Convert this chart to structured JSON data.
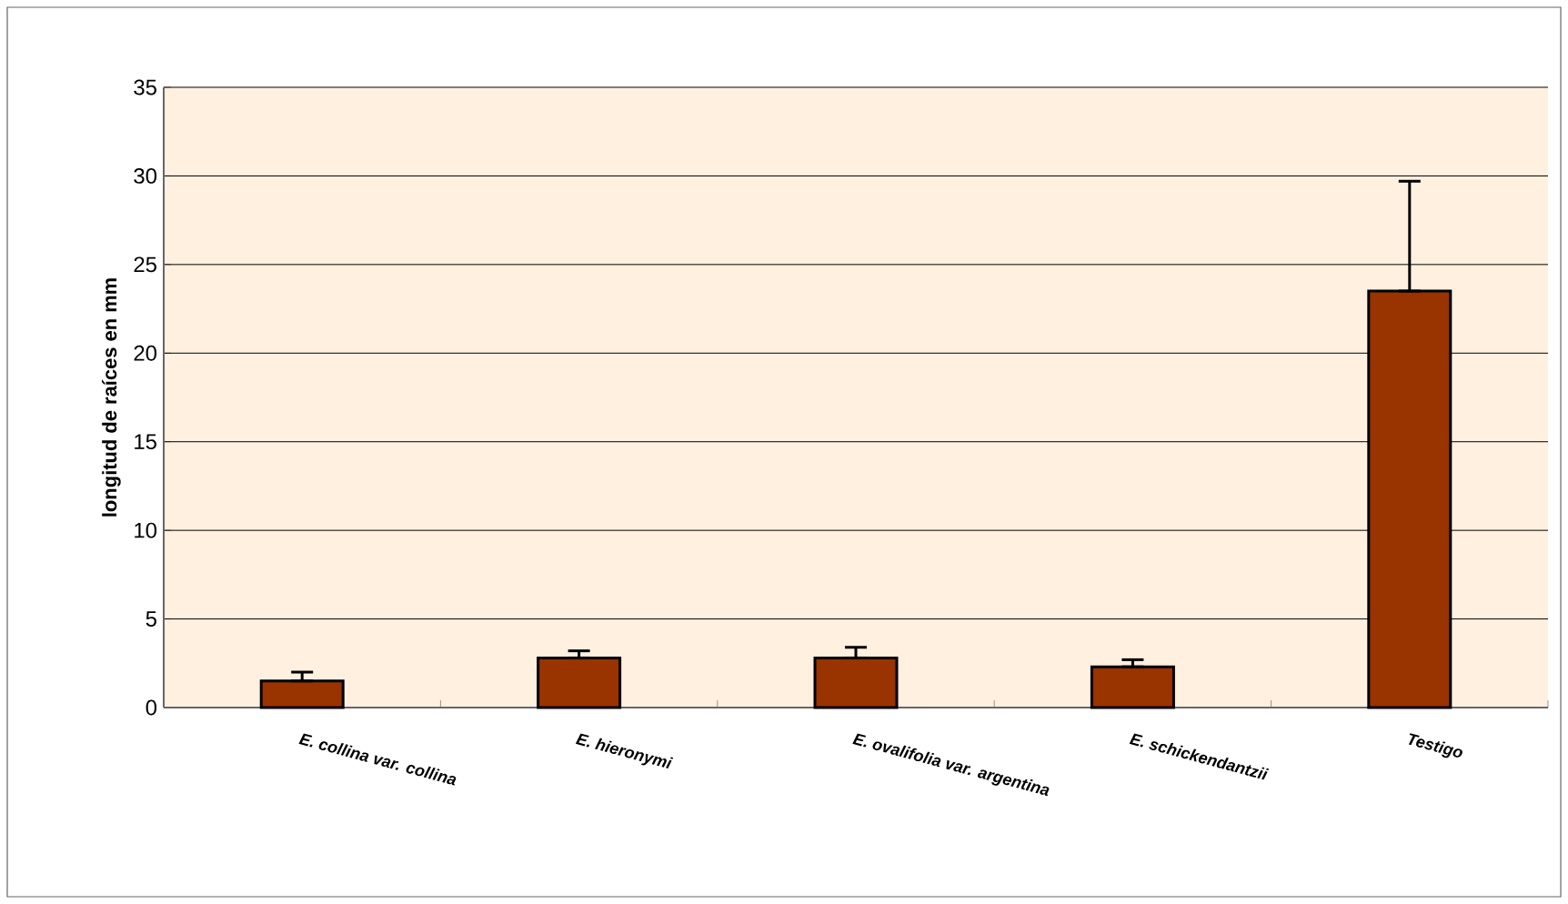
{
  "chart_data": {
    "type": "bar",
    "ylabel": "longitud de raíces en mm",
    "categories": [
      "*E. collina var. collina*",
      "*E. hieronymi*",
      "*E. ovalifolia var. argentina*",
      "*E. schickendantzii*",
      "*Testigo*"
    ],
    "values": [
      1.5,
      2.8,
      2.8,
      2.3,
      23.5
    ],
    "errors": [
      [
        1.5,
        2.0
      ],
      [
        2.8,
        3.2
      ],
      [
        2.8,
        3.4
      ],
      [
        2.3,
        2.7
      ],
      [
        23.5,
        29.7
      ]
    ],
    "color": "#993300",
    "ylim": [
      0,
      35
    ],
    "yticks": [
      0,
      5,
      10,
      15,
      20,
      25,
      30,
      35
    ],
    "grid": "y"
  }
}
